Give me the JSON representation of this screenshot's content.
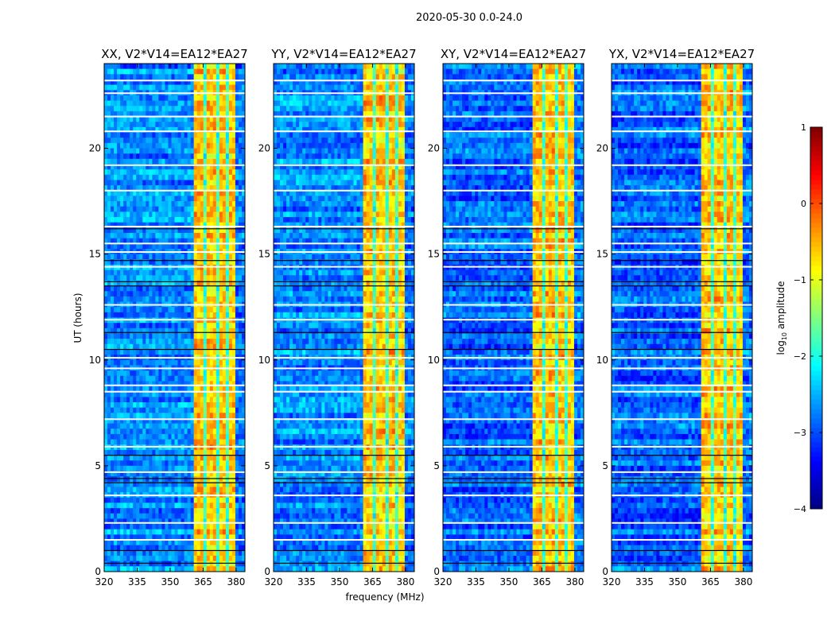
{
  "chart_data": {
    "type": "heatmap",
    "suptitle": "2020-05-30 0.0-24.0",
    "xlabel": "frequency (MHz)",
    "ylabel": "UT (hours)",
    "xlim": [
      320,
      384
    ],
    "ylim": [
      0,
      24
    ],
    "xticks": [
      "320",
      "335",
      "350",
      "365",
      "380"
    ],
    "xtick_values": [
      320,
      335,
      350,
      365,
      380
    ],
    "yticks": [
      "0",
      "5",
      "10",
      "15",
      "20"
    ],
    "ytick_values": [
      0,
      5,
      10,
      15,
      20
    ],
    "panels": [
      {
        "title": "XX, V2*V14=EA12*EA27"
      },
      {
        "title": "YY, V2*V14=EA12*EA27"
      },
      {
        "title": "XY, V2*V14=EA12*EA27"
      },
      {
        "title": "YX, V2*V14=EA12*EA27"
      }
    ],
    "frequency_bands_log10_amplitude": [
      {
        "from": 320,
        "to": 361,
        "value": -2.7
      },
      {
        "from": 361,
        "to": 365.5,
        "value": -0.6
      },
      {
        "from": 365.5,
        "to": 366.5,
        "value": -1.8
      },
      {
        "from": 366.5,
        "to": 371,
        "value": -0.6
      },
      {
        "from": 371,
        "to": 372,
        "value": -1.8
      },
      {
        "from": 372,
        "to": 376,
        "value": -0.6
      },
      {
        "from": 376,
        "to": 377,
        "value": -1.8
      },
      {
        "from": 377,
        "to": 380,
        "value": -0.7
      },
      {
        "from": 380,
        "to": 384,
        "value": -2.8
      }
    ],
    "flagged_hours_white": [
      1.5,
      2.3,
      3.6,
      4.7,
      5.9,
      7.2,
      8.5,
      8.8,
      9.6,
      10.1,
      11.9,
      12.6,
      14.4,
      15.1,
      15.5,
      16.3,
      18.0,
      19.2,
      20.8,
      21.5,
      22.6,
      23.2
    ],
    "flagged_hours_black": [
      0.4,
      1.0,
      4.2,
      4.4,
      5.5,
      10.5,
      11.3,
      13.5,
      13.7,
      14.7,
      16.2
    ],
    "colorbar": {
      "label_prefix": "log",
      "label_sub": "10",
      "label_suffix": " amplitude",
      "range": [
        -4,
        1
      ],
      "ticks": [
        "−4",
        "−3",
        "−2",
        "−1",
        "0",
        "1"
      ],
      "tick_values": [
        -4,
        -3,
        -2,
        -1,
        0,
        1
      ]
    }
  }
}
